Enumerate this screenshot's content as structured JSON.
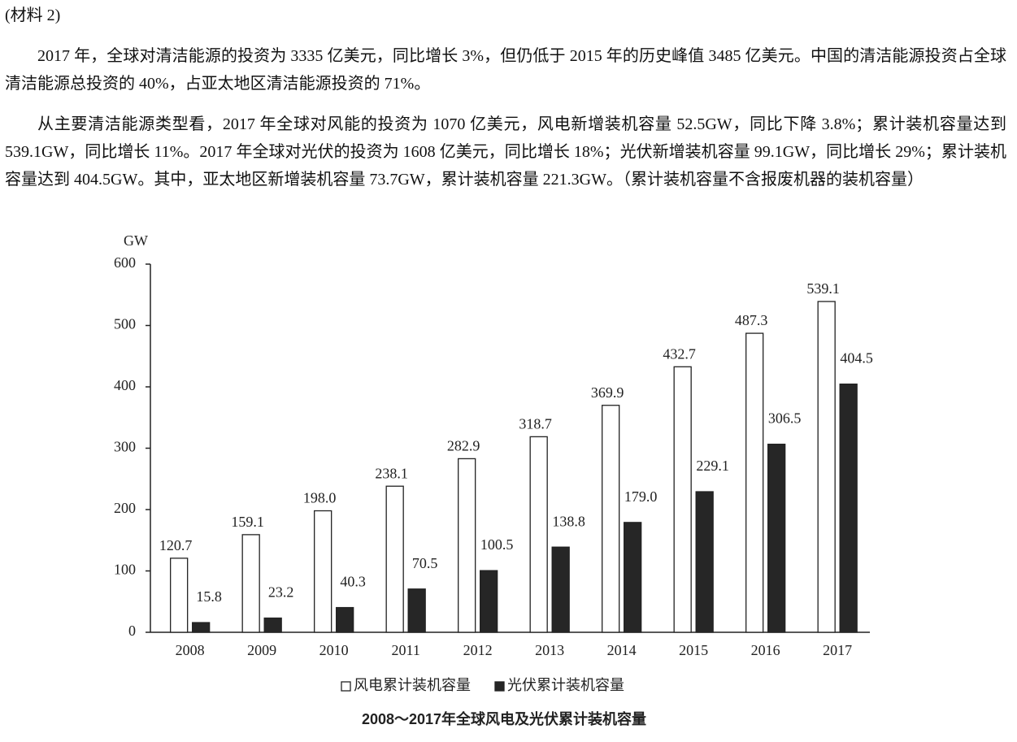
{
  "document": {
    "label": "(材料 2)",
    "paragraphs": [
      "2017 年，全球对清洁能源的投资为 3335 亿美元，同比增长 3%，但仍低于 2015 年的历史峰值 3485 亿美元。中国的清洁能源投资占全球清洁能源总投资的 40%，占亚太地区清洁能源投资的 71%。",
      "从主要清洁能源类型看，2017 年全球对风能的投资为 1070 亿美元，风电新增装机容量 52.5GW，同比下降 3.8%；累计装机容量达到 539.1GW，同比增长 11%。2017 年全球对光伏的投资为 1608 亿美元，同比增长 18%；光伏新增装机容量 99.1GW，同比增长 29%；累计装机容量达到 404.5GW。其中，亚太地区新增装机容量 73.7GW，累计装机容量 221.3GW。（累计装机容量不含报废机器的装机容量）"
    ]
  },
  "chart_data": {
    "type": "bar",
    "title": "2008～2017年全球风电及光伏累计装机容量",
    "y_label": "GW",
    "categories": [
      "2008",
      "2009",
      "2010",
      "2011",
      "2012",
      "2013",
      "2014",
      "2015",
      "2016",
      "2017"
    ],
    "series": [
      {
        "name": "风电累计装机容量",
        "color": "#ffffff",
        "values": [
          120.7,
          159.1,
          198.0,
          238.1,
          282.9,
          318.7,
          369.9,
          432.7,
          487.3,
          539.1
        ],
        "value_labels": [
          "120.7",
          "159.1",
          "198.0",
          "238.1",
          "282.9",
          "318.7",
          "369.9",
          "432.7",
          "487.3",
          "539.1"
        ]
      },
      {
        "name": "光伏累计装机容量",
        "color": "#262626",
        "values": [
          15.8,
          23.2,
          40.3,
          70.5,
          100.5,
          138.8,
          179.0,
          229.1,
          306.5,
          404.5
        ],
        "value_labels": [
          "15.8",
          "23.2",
          "40.3",
          "70.5",
          "100.5",
          "138.8",
          "179.0",
          "229.1",
          "306.5",
          "404.5"
        ]
      }
    ],
    "ylim": [
      0,
      600
    ],
    "yticks": [
      0,
      100,
      200,
      300,
      400,
      500,
      600
    ],
    "grid": false
  }
}
